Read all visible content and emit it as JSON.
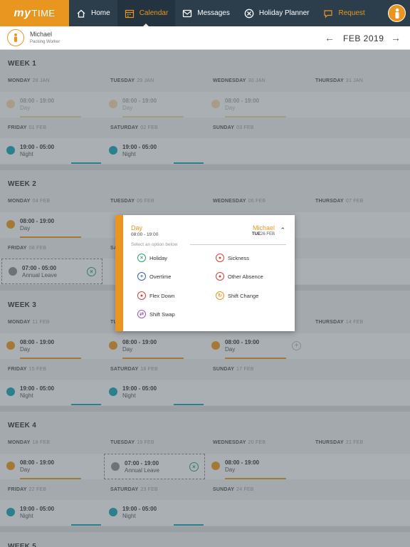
{
  "app": {
    "logo_my": "my",
    "logo_time": "TIME"
  },
  "nav": {
    "home": "Home",
    "calendar": "Calendar",
    "messages": "Messages",
    "holiday_planner": "Holiday Planner",
    "request": "Request"
  },
  "user": {
    "name": "Michael",
    "role": "Packing Worker"
  },
  "header": {
    "month": "FEB 2019",
    "prev": "←",
    "next": "→"
  },
  "colors": {
    "accent": "#e8961f",
    "night": "#1aa3b0",
    "leave": "#8c8c8c",
    "green": "#2aa36b",
    "red": "#d0453d",
    "blue": "#3d5fa8",
    "purple": "#9a5bb0"
  },
  "weeks": [
    {
      "title": "WEEK 1",
      "row1": [
        {
          "day": "MONDAY",
          "date": "28 JAN",
          "time": "08:00 - 19:00",
          "kind": "Day",
          "dot": "faded"
        },
        {
          "day": "TUESDAY",
          "date": "29 JAN",
          "time": "08:00 - 19:00",
          "kind": "Day",
          "dot": "faded"
        },
        {
          "day": "WEDNESDAY",
          "date": "30 JAN",
          "time": "08:00 - 19:00",
          "kind": "Day",
          "dot": "faded"
        },
        {
          "day": "THURSDAY",
          "date": "31 JAN"
        }
      ],
      "row2": [
        {
          "day": "FRIDAY",
          "date": "01 FEB",
          "time": "19:00 - 05:00",
          "kind": "Night"
        },
        {
          "day": "SATURDAY",
          "date": "02 FEB",
          "time": "19:00 - 05:00",
          "kind": "Night"
        },
        {
          "day": "SUNDAY",
          "date": "03 FEB"
        }
      ]
    },
    {
      "title": "WEEK 2",
      "row1": [
        {
          "day": "MONDAY",
          "date": "04 FEB",
          "time": "08:00 - 19:00",
          "kind": "Day"
        },
        {
          "day": "TUESDAY",
          "date": "05 FEB"
        },
        {
          "day": "WEDNESDAY",
          "date": "06 FEB"
        },
        {
          "day": "THURSDAY",
          "date": "07 FEB"
        }
      ],
      "row2": [
        {
          "day": "FRIDAY",
          "date": "08 FEB",
          "time": "07:00 - 05:00",
          "kind": "Annual Leave"
        },
        {
          "day": "SA"
        }
      ]
    },
    {
      "title": "WEEK 3",
      "row1": [
        {
          "day": "MONDAY",
          "date": "11 FEB",
          "time": "08:00 - 19:00",
          "kind": "Day"
        },
        {
          "day": "TU",
          "time": "08:00 - 19:00",
          "kind": "Day"
        },
        {
          "time": "08:00 - 19:00",
          "kind": "Day"
        },
        {
          "day": "THURSDAY",
          "date": "14 FEB"
        }
      ],
      "row2": [
        {
          "day": "FRIDAY",
          "date": "15 FEB",
          "time": "19:00 - 05:00",
          "kind": "Night"
        },
        {
          "day": "SATURDAY",
          "date": "16 FEB",
          "time": "19:00 - 05:00",
          "kind": "Night"
        },
        {
          "day": "SUNDAY",
          "date": "17 FEB"
        }
      ]
    },
    {
      "title": "WEEK 4",
      "row1": [
        {
          "day": "MONDAY",
          "date": "18 FEB",
          "time": "08:00 - 19:00",
          "kind": "Day"
        },
        {
          "day": "TUESDAY",
          "date": "19 FEB",
          "time": "07:00 - 19:00",
          "kind": "Annual Leave"
        },
        {
          "day": "WEDNESDAY",
          "date": "20 FEB",
          "time": "08:00 - 19:00",
          "kind": "Day"
        },
        {
          "day": "THURSDAY",
          "date": "21 FEB"
        }
      ],
      "row2": [
        {
          "day": "FRIDAY",
          "date": "22 FEB",
          "time": "19:00 - 05:00",
          "kind": "Night"
        },
        {
          "day": "SATURDAY",
          "date": "23 FEB",
          "time": "19:00 - 05:00",
          "kind": "Night"
        },
        {
          "day": "SUNDAY",
          "date": "24 FEB"
        }
      ]
    },
    {
      "title": "WEEK 5"
    }
  ],
  "popup": {
    "kind": "Day",
    "time": "08:00 - 19:00",
    "name": "Michael",
    "weekday": "TUE",
    "date": "26 FEB",
    "hint": "Select an option below",
    "options": {
      "holiday": "Holiday",
      "sickness": "Sickness",
      "overtime": "Overtime",
      "other_absence": "Other Absence",
      "flex_down": "Flex Down",
      "shift_change": "Shift Change",
      "shift_swap": "Shift Swap"
    }
  }
}
